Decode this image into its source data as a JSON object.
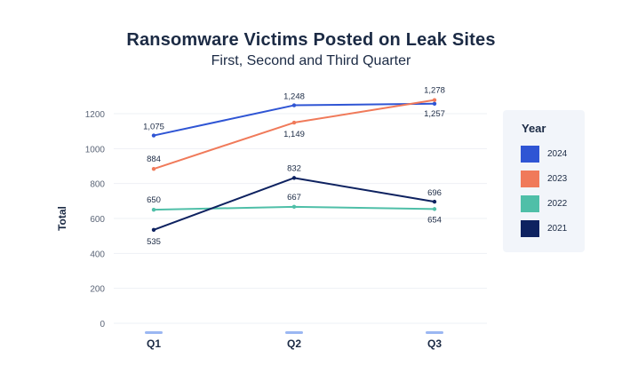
{
  "chart_data": {
    "type": "line",
    "title": "Ransomware Victims Posted on Leak Sites",
    "subtitle": "First, Second and Third Quarter",
    "xlabel": "",
    "ylabel": "Total",
    "categories": [
      "Q1",
      "Q2",
      "Q3"
    ],
    "ylim": [
      0,
      1400
    ],
    "yticks": [
      0,
      200,
      400,
      600,
      800,
      1000,
      1200
    ],
    "grid": true,
    "legend": {
      "title": "Year",
      "placement": "right",
      "entries": [
        "2024",
        "2023",
        "2022",
        "2021"
      ]
    },
    "series": [
      {
        "name": "2024",
        "color": "#2f55d4",
        "values": [
          1075,
          1248,
          1257
        ],
        "labels": [
          "1,075",
          "1,248",
          "1,257"
        ]
      },
      {
        "name": "2023",
        "color": "#f07a5a",
        "values": [
          884,
          1149,
          1278
        ],
        "labels": [
          "884",
          "1,149",
          "1,278"
        ]
      },
      {
        "name": "2022",
        "color": "#4fbfa8",
        "values": [
          650,
          667,
          654
        ],
        "labels": [
          "650",
          "667",
          "654"
        ]
      },
      {
        "name": "2021",
        "color": "#0e2260",
        "values": [
          535,
          832,
          696
        ],
        "labels": [
          "535",
          "832",
          "696"
        ]
      }
    ]
  }
}
